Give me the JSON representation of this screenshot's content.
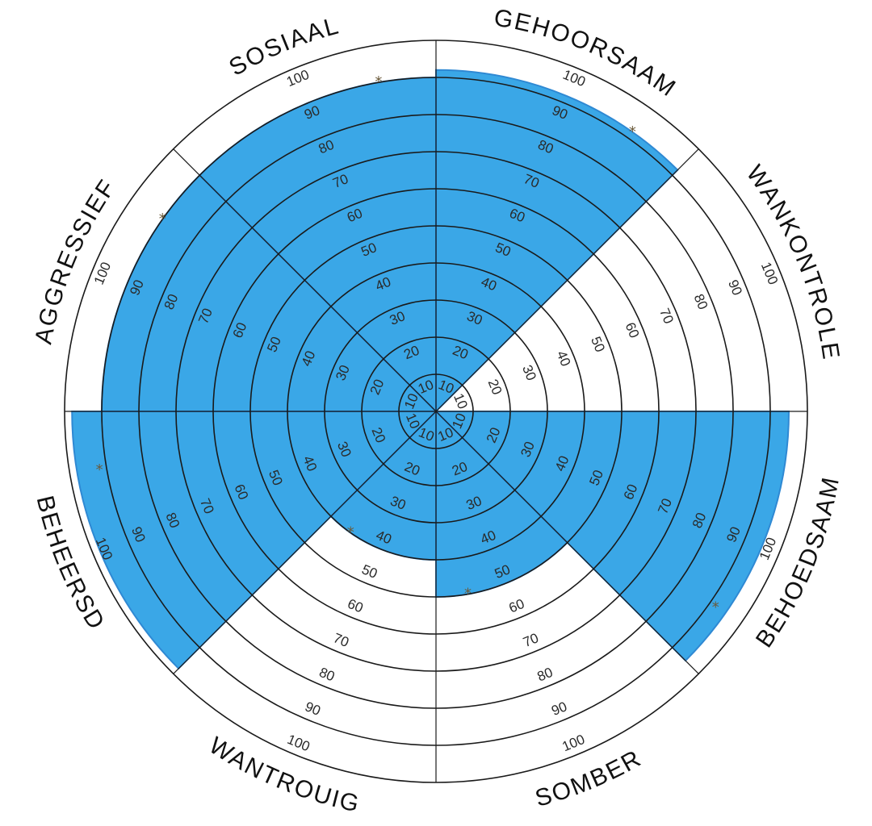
{
  "chart_data": {
    "type": "polar-area",
    "title": "",
    "rlim": [
      0,
      100
    ],
    "ticks": [
      "10",
      "20",
      "30",
      "40",
      "50",
      "60",
      "70",
      "80",
      "90",
      "100"
    ],
    "categories": [
      "GEHOORSAAM",
      "WANKONTROLE",
      "BEHOEDSAAM",
      "SOMBER",
      "WANTROUIG",
      "BEHEERSD",
      "AGGRESSIEF",
      "SOSIAAL"
    ],
    "values": [
      92,
      0,
      95,
      50,
      40,
      98,
      90,
      90
    ],
    "markers": [
      92,
      null,
      92,
      50,
      40,
      92,
      90,
      90
    ],
    "fill_color": "#2aa0e6",
    "line_color": "#1a1a1a",
    "marker_symbol": "*"
  }
}
